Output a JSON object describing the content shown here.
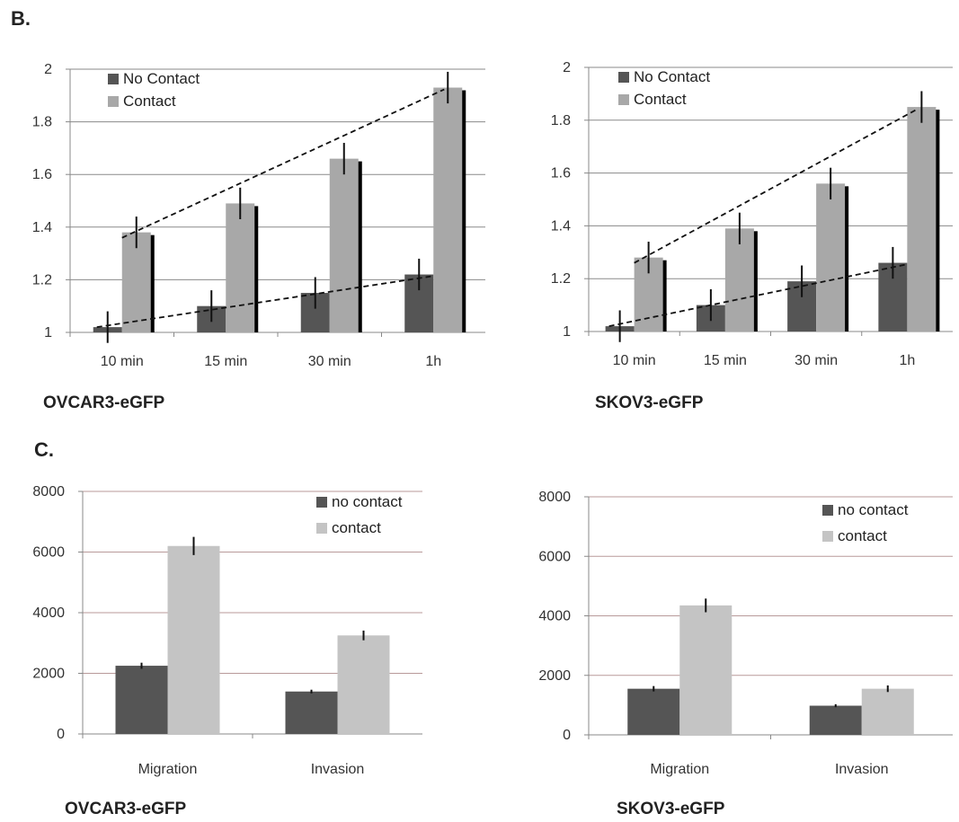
{
  "panels": [
    {
      "label": "B."
    },
    {
      "label": "C."
    }
  ],
  "chart_data": [
    {
      "type": "bar",
      "title": "OVCAR3-eGFP",
      "categories": [
        "10 min",
        "15 min",
        "30 min",
        "1h"
      ],
      "series": [
        {
          "name": "No Contact",
          "values": [
            1.02,
            1.1,
            1.15,
            1.22
          ],
          "errors": [
            0.06,
            0.06,
            0.06,
            0.06
          ]
        },
        {
          "name": "Contact",
          "values": [
            1.38,
            1.49,
            1.66,
            1.93
          ],
          "errors": [
            0.06,
            0.06,
            0.06,
            0.06
          ]
        }
      ],
      "ylim": [
        1,
        2
      ],
      "yticks": [
        "1",
        "1.2",
        "1.4",
        "1.6",
        "1.8",
        "2"
      ],
      "grid": true,
      "legend": "top-left",
      "trendlines": true,
      "colors": {
        "No Contact": "#555555",
        "Contact": "#a8a8a8"
      }
    },
    {
      "type": "bar",
      "title": "SKOV3-eGFP",
      "categories": [
        "10 min",
        "15 min",
        "30 min",
        "1h"
      ],
      "series": [
        {
          "name": "No Contact",
          "values": [
            1.02,
            1.1,
            1.19,
            1.26
          ],
          "errors": [
            0.06,
            0.06,
            0.06,
            0.06
          ]
        },
        {
          "name": "Contact",
          "values": [
            1.28,
            1.39,
            1.56,
            1.85
          ],
          "errors": [
            0.06,
            0.06,
            0.06,
            0.06
          ]
        }
      ],
      "ylim": [
        1,
        2
      ],
      "yticks": [
        "1",
        "1.2",
        "1.4",
        "1.6",
        "1.8",
        "2"
      ],
      "grid": true,
      "legend": "top-left",
      "trendlines": true,
      "colors": {
        "No Contact": "#555555",
        "Contact": "#a8a8a8"
      }
    },
    {
      "type": "bar",
      "title": "OVCAR3-eGFP",
      "categories": [
        "Migration",
        "Invasion"
      ],
      "series": [
        {
          "name": "no contact",
          "values": [
            2250,
            1400
          ],
          "errors": [
            100,
            60
          ]
        },
        {
          "name": "contact",
          "values": [
            6200,
            3250
          ],
          "errors": [
            300,
            160
          ]
        }
      ],
      "ylim": [
        0,
        8000
      ],
      "yticks": [
        "0",
        "2000",
        "4000",
        "6000",
        "8000"
      ],
      "grid": true,
      "legend": "top-right",
      "colors": {
        "no contact": "#555555",
        "contact": "#c4c4c4"
      }
    },
    {
      "type": "bar",
      "title": "SKOV3-eGFP",
      "categories": [
        "Migration",
        "Invasion"
      ],
      "series": [
        {
          "name": "no contact",
          "values": [
            1550,
            980
          ],
          "errors": [
            90,
            50
          ]
        },
        {
          "name": "contact",
          "values": [
            4350,
            1550
          ],
          "errors": [
            230,
            110
          ]
        }
      ],
      "ylim": [
        0,
        8000
      ],
      "yticks": [
        "0",
        "2000",
        "4000",
        "6000",
        "8000"
      ],
      "grid": true,
      "legend": "top-right",
      "colors": {
        "no contact": "#555555",
        "contact": "#c4c4c4"
      }
    }
  ]
}
